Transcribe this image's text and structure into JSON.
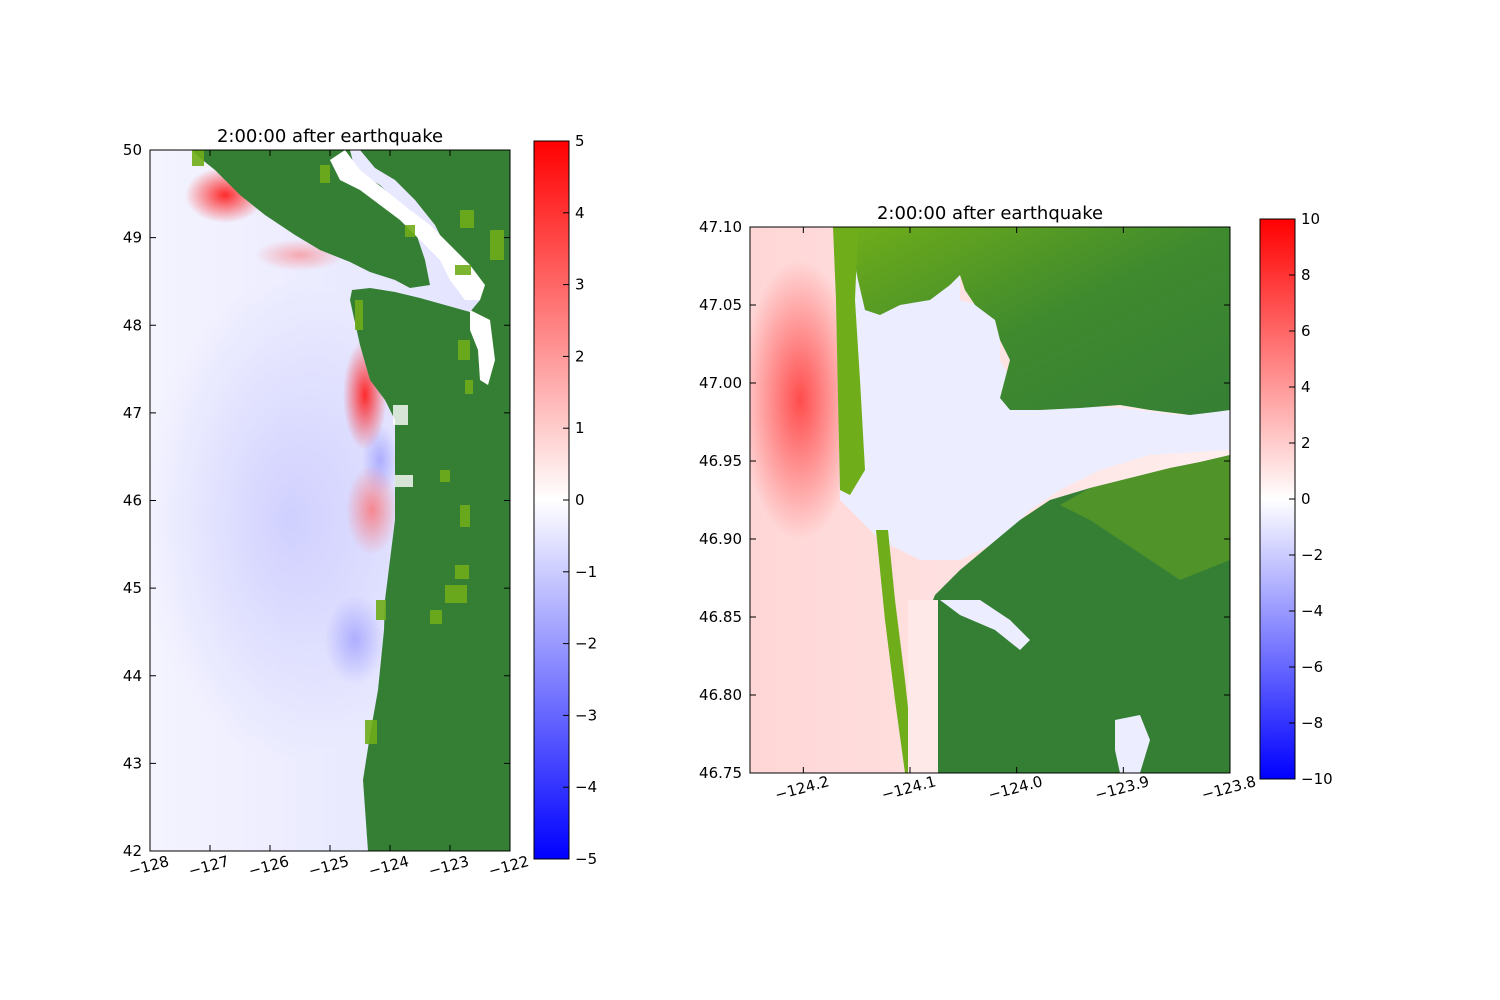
{
  "figure": {
    "panels": [
      {
        "title": "2:00:00 after earthquake",
        "x_ticks": [
          "−128",
          "−127",
          "−126",
          "−125",
          "−124",
          "−123",
          "−122"
        ],
        "y_ticks": [
          "42",
          "43",
          "44",
          "45",
          "46",
          "47",
          "48",
          "49",
          "50"
        ],
        "colorbar_ticks": [
          "−5",
          "−4",
          "−3",
          "−2",
          "−1",
          "0",
          "1",
          "2",
          "3",
          "4",
          "5"
        ]
      },
      {
        "title": "2:00:00 after earthquake",
        "x_ticks": [
          "−124.2",
          "−124.1",
          "−124.0",
          "−123.9",
          "−123.8"
        ],
        "y_ticks": [
          "46.75",
          "46.80",
          "46.85",
          "46.90",
          "46.95",
          "47.00",
          "47.05",
          "47.10"
        ],
        "colorbar_ticks": [
          "−10",
          "−8",
          "−6",
          "−4",
          "−2",
          "0",
          "2",
          "4",
          "6",
          "8",
          "10"
        ]
      }
    ]
  },
  "chart_data": [
    {
      "type": "heatmap",
      "title": "2:00:00 after earthquake",
      "xlabel": "",
      "ylabel": "",
      "x_range": [
        -128,
        -122
      ],
      "y_range": [
        42,
        50
      ],
      "x_ticks": [
        -128,
        -127,
        -126,
        -125,
        -124,
        -123,
        -122
      ],
      "y_ticks": [
        42,
        43,
        44,
        45,
        46,
        47,
        48,
        49,
        50
      ],
      "color_range": [
        -5,
        5
      ],
      "colorbar_ticks": [
        -5,
        -4,
        -3,
        -2,
        -1,
        0,
        1,
        2,
        3,
        4,
        5
      ],
      "colormap": "bwr",
      "land_colors": [
        "#357f35",
        "#6fad1a"
      ],
      "features": [
        {
          "label": "positive anomaly",
          "lon": -124.45,
          "lat": 47.15,
          "value": 4.5
        },
        {
          "label": "positive anomaly",
          "lon": -124.6,
          "lat": 45.9,
          "value": 1.8
        },
        {
          "label": "positive anomaly",
          "lon": -126.8,
          "lat": 49.4,
          "value": 3.5
        },
        {
          "label": "negative anomaly",
          "lon": -124.3,
          "lat": 46.55,
          "value": -1.5
        },
        {
          "label": "negative anomaly",
          "lon": -124.5,
          "lat": 44.5,
          "value": -1.2
        }
      ],
      "grid": false,
      "legend": "colorbar-right"
    },
    {
      "type": "heatmap",
      "title": "2:00:00 after earthquake",
      "xlabel": "",
      "ylabel": "",
      "x_range": [
        -124.25,
        -123.8
      ],
      "y_range": [
        46.75,
        47.1
      ],
      "x_ticks": [
        -124.2,
        -124.1,
        -124.0,
        -123.9,
        -123.8
      ],
      "y_ticks": [
        46.75,
        46.8,
        46.85,
        46.9,
        46.95,
        47.0,
        47.05,
        47.1
      ],
      "color_range": [
        -10,
        10
      ],
      "colorbar_ticks": [
        -10,
        -8,
        -6,
        -4,
        -2,
        0,
        2,
        4,
        6,
        8,
        10
      ],
      "colormap": "bwr",
      "land_colors": [
        "#357f35",
        "#6fad1a"
      ],
      "features": [
        {
          "label": "positive anomaly",
          "lon": -124.22,
          "lat": 46.98,
          "value": 5
        },
        {
          "label": "negative anomaly",
          "lon": -123.95,
          "lat": 46.95,
          "value": -1
        }
      ],
      "grid": false,
      "legend": "colorbar-right"
    }
  ]
}
